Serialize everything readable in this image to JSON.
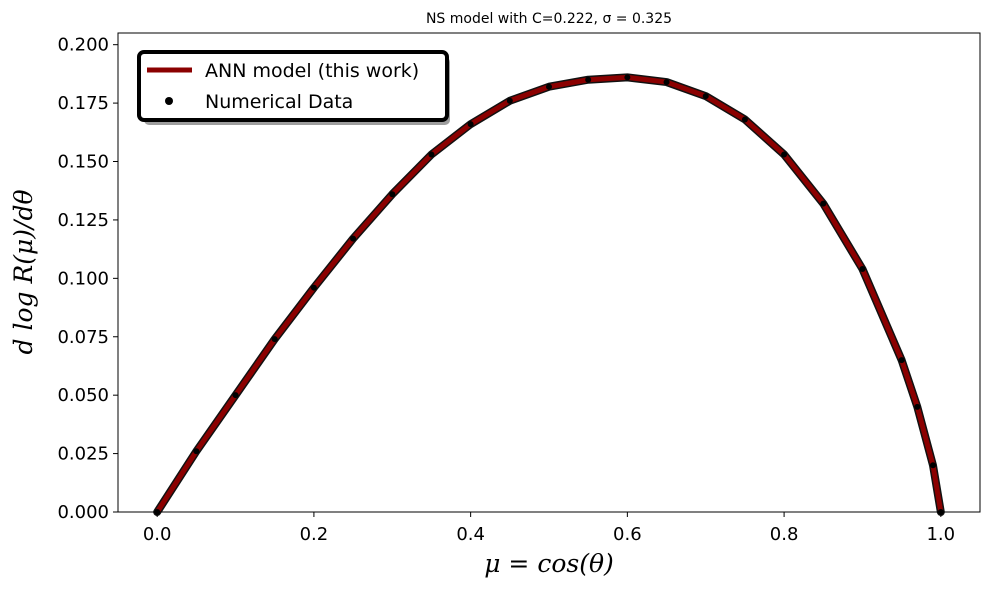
{
  "chart_data": {
    "type": "line",
    "title": "NS model with C=0.222, σ = 0.325",
    "xlabel": "μ = cos(θ)",
    "ylabel": "d log R(μ)/dθ",
    "xlim": [
      -0.05,
      1.05
    ],
    "ylim": [
      0.0,
      0.205
    ],
    "xticks": [
      "0.0",
      "0.2",
      "0.4",
      "0.6",
      "0.8",
      "1.0"
    ],
    "yticks": [
      "0.000",
      "0.025",
      "0.050",
      "0.075",
      "0.100",
      "0.125",
      "0.150",
      "0.175",
      "0.200"
    ],
    "grid": false,
    "legend_position": "top-left",
    "series": [
      {
        "name": "ANN model (this work)",
        "kind": "line",
        "color": "#8b0000",
        "x": [
          0.0,
          0.05,
          0.1,
          0.15,
          0.2,
          0.25,
          0.3,
          0.35,
          0.4,
          0.45,
          0.5,
          0.55,
          0.6,
          0.65,
          0.7,
          0.75,
          0.8,
          0.85,
          0.9,
          0.95,
          0.97,
          0.99,
          1.0
        ],
        "y": [
          0.0,
          0.026,
          0.05,
          0.074,
          0.096,
          0.117,
          0.136,
          0.153,
          0.166,
          0.176,
          0.182,
          0.185,
          0.186,
          0.184,
          0.178,
          0.168,
          0.153,
          0.132,
          0.104,
          0.065,
          0.045,
          0.02,
          0.0
        ]
      },
      {
        "name": "Numerical Data",
        "kind": "scatter",
        "color": "#000000",
        "x": [
          0.0,
          0.05,
          0.1,
          0.15,
          0.2,
          0.25,
          0.3,
          0.35,
          0.4,
          0.45,
          0.5,
          0.55,
          0.6,
          0.65,
          0.7,
          0.75,
          0.8,
          0.85,
          0.9,
          0.95,
          0.97,
          0.99,
          1.0
        ],
        "y": [
          0.0,
          0.026,
          0.05,
          0.074,
          0.096,
          0.117,
          0.136,
          0.153,
          0.166,
          0.176,
          0.182,
          0.185,
          0.186,
          0.184,
          0.178,
          0.168,
          0.153,
          0.132,
          0.104,
          0.065,
          0.045,
          0.02,
          0.0
        ]
      }
    ]
  }
}
